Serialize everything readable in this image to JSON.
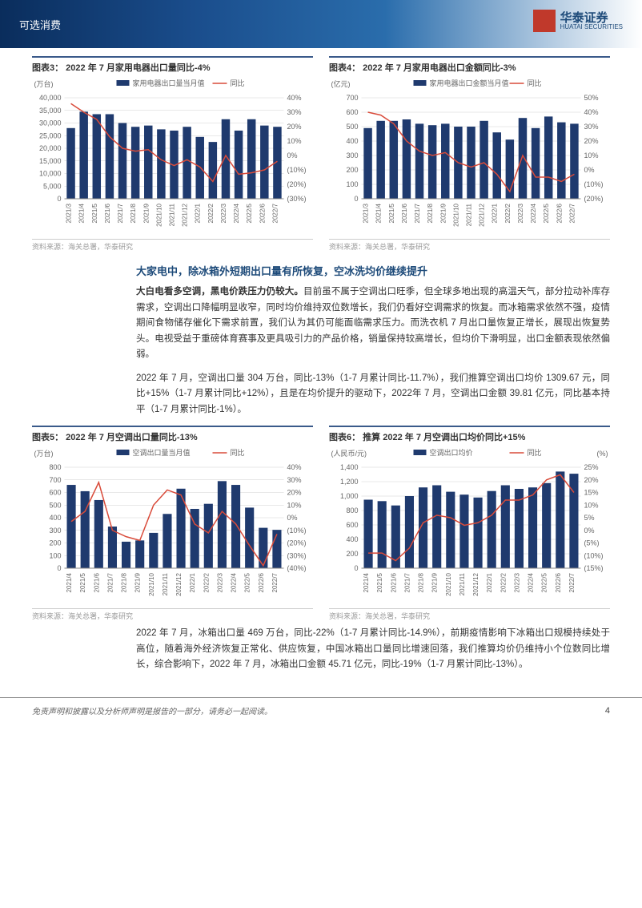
{
  "header": {
    "category": "可选消费",
    "logo_cn": "华泰证券",
    "logo_en": "HUATAI SECURITIES"
  },
  "chart3": {
    "title": "图表3：  2022 年 7 月家用电器出口量同比-4%",
    "type": "bar+line",
    "unit_left": "(万台)",
    "legend_bar": "家用电器出口量当月值",
    "legend_line": "同比",
    "categories": [
      "2021/3",
      "2021/4",
      "2021/5",
      "2021/6",
      "2021/7",
      "2021/8",
      "2021/9",
      "2021/10",
      "2021/11",
      "2021/12",
      "2022/1",
      "2022/2",
      "2022/3",
      "2022/4",
      "2022/5",
      "2022/6",
      "2022/7"
    ],
    "bar_values": [
      28000,
      34500,
      33500,
      33500,
      30000,
      28500,
      29000,
      27500,
      27000,
      28500,
      24500,
      22500,
      31500,
      27000,
      31500,
      29000,
      28500
    ],
    "line_values": [
      36,
      30,
      25,
      13,
      5,
      3,
      4,
      -3,
      -7,
      -3,
      -8,
      -18,
      0,
      -13,
      -12,
      -10,
      -4
    ],
    "y_left_min": 0,
    "y_left_max": 40000,
    "y_left_step": 5000,
    "y_right_min": -30,
    "y_right_max": 40,
    "y_right_step": 10,
    "bar_color": "#1f3a6e",
    "line_color": "#d94b3a",
    "grid_color": "#d0d0d0",
    "bg_color": "#ffffff",
    "source": "资料来源：海关总署，华泰研究"
  },
  "chart4": {
    "title": "图表4：  2022 年 7 月家用电器出口金额同比-3%",
    "type": "bar+line",
    "unit_left": "(亿元)",
    "legend_bar": "家用电器出口金额当月值",
    "legend_line": "同比",
    "categories": [
      "2021/3",
      "2021/4",
      "2021/5",
      "2021/6",
      "2021/7",
      "2021/8",
      "2021/9",
      "2021/10",
      "2021/11",
      "2021/12",
      "2022/1",
      "2022/2",
      "2022/3",
      "2022/4",
      "2022/5",
      "2022/6",
      "2022/7"
    ],
    "bar_values": [
      490,
      540,
      540,
      550,
      520,
      510,
      520,
      500,
      500,
      540,
      460,
      410,
      560,
      490,
      570,
      530,
      520
    ],
    "line_values": [
      40,
      38,
      32,
      20,
      13,
      10,
      12,
      5,
      2,
      5,
      -3,
      -15,
      10,
      -5,
      -5,
      -8,
      -3
    ],
    "y_left_min": 0,
    "y_left_max": 700,
    "y_left_step": 100,
    "y_right_min": -20,
    "y_right_max": 50,
    "y_right_step": 10,
    "bar_color": "#1f3a6e",
    "line_color": "#d94b3a",
    "grid_color": "#d0d0d0",
    "bg_color": "#ffffff",
    "source": "资料来源：海关总署，华泰研究"
  },
  "section1_heading": "大家电中，除冰箱外短期出口量有所恢复，空冰洗均价继续提升",
  "para1_bold": "大白电看多空调，黑电价跌压力仍较大。",
  "para1": "目前虽不属于空调出口旺季，但全球多地出现的高温天气，部分拉动补库存需求，空调出口降幅明显收窄，同时均价维持双位数增长，我们仍看好空调需求的恢复。而冰箱需求依然不强，疫情期间食物储存催化下需求前置，我们认为其仍可能面临需求压力。而洗衣机 7 月出口量恢复正增长，展现出恢复势头。电视受益于重磅体育赛事及更具吸引力的产品价格，销量保持较高增长，但均价下滑明显，出口金额表现依然偏弱。",
  "para2": "2022 年 7 月，空调出口量 304 万台，同比-13%（1-7 月累计同比-11.7%），我们推算空调出口均价 1309.67 元，同比+15%（1-7 月累计同比+12%），且是在均价提升的驱动下，2022年 7 月，空调出口金额 39.81 亿元，同比基本持平（1-7 月累计同比-1%）。",
  "chart5": {
    "title": "图表5：  2022 年 7 月空调出口量同比-13%",
    "type": "bar+line",
    "unit_left": "(万台)",
    "legend_bar": "空调出口量当月值",
    "legend_line": "同比",
    "categories": [
      "2021/4",
      "2021/5",
      "2021/6",
      "2021/7",
      "2021/8",
      "2021/9",
      "2021/10",
      "2021/11",
      "2021/12",
      "2022/1",
      "2022/2",
      "2022/3",
      "2022/4",
      "2022/5",
      "2022/6",
      "2022/7"
    ],
    "bar_values": [
      660,
      610,
      540,
      330,
      210,
      220,
      280,
      430,
      630,
      470,
      510,
      690,
      660,
      480,
      320,
      304
    ],
    "line_values": [
      -3,
      5,
      28,
      -10,
      -15,
      -18,
      10,
      22,
      18,
      -5,
      -12,
      5,
      -5,
      -22,
      -38,
      -13
    ],
    "y_left_min": 0,
    "y_left_max": 800,
    "y_left_step": 100,
    "y_right_min": -40,
    "y_right_max": 40,
    "y_right_step": 10,
    "bar_color": "#1f3a6e",
    "line_color": "#d94b3a",
    "grid_color": "#d0d0d0",
    "bg_color": "#ffffff",
    "source": "资料来源：海关总署，华泰研究"
  },
  "chart6": {
    "title": "图表6：  推算 2022 年 7 月空调出口均价同比+15%",
    "type": "bar+line",
    "unit_left": "(人民币/元)",
    "unit_right": "(%)",
    "legend_bar": "空调出口均价",
    "legend_line": "同比",
    "categories": [
      "2021/4",
      "2021/5",
      "2021/6",
      "2021/7",
      "2021/8",
      "2021/9",
      "2021/10",
      "2021/11",
      "2021/12",
      "2022/1",
      "2022/2",
      "2022/3",
      "2022/4",
      "2022/5",
      "2022/6",
      "2022/7"
    ],
    "bar_values": [
      950,
      930,
      870,
      1000,
      1120,
      1150,
      1060,
      1020,
      980,
      1070,
      1150,
      1100,
      1120,
      1180,
      1340,
      1310
    ],
    "line_values": [
      -9,
      -9,
      -12,
      -7,
      3,
      6,
      5,
      2,
      3,
      6,
      12,
      12,
      14,
      20,
      22,
      15
    ],
    "y_left_min": 0,
    "y_left_max": 1400,
    "y_left_step": 200,
    "y_right_min": -15,
    "y_right_max": 25,
    "y_right_step": 5,
    "bar_color": "#1f3a6e",
    "line_color": "#d94b3a",
    "grid_color": "#d0d0d0",
    "bg_color": "#ffffff",
    "source": "资料来源：海关总署，华泰研究"
  },
  "para3": "2022 年 7 月，冰箱出口量 469 万台，同比-22%（1-7 月累计同比-14.9%），前期疫情影响下冰箱出口规模持续处于高位，随着海外经济恢复正常化、供应恢复，中国冰箱出口量同比增速回落，我们推算均价仍维持小个位数同比增长，综合影响下，2022 年 7 月，冰箱出口金额 45.71 亿元，同比-19%（1-7 月累计同比-13%）。",
  "footer": {
    "disclaimer": "免责声明和披露以及分析师声明是报告的一部分，请务必一起阅读。",
    "page": "4"
  }
}
